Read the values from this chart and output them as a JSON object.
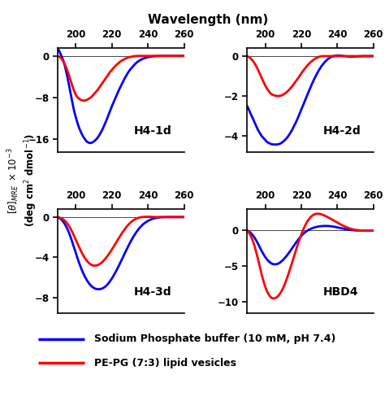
{
  "title": "Wavelength (nm)",
  "xlim": [
    190,
    260
  ],
  "xticks": [
    200,
    220,
    240,
    260
  ],
  "subplots": [
    {
      "label": "H4-1d",
      "ylim": [
        -18.5,
        1.5
      ],
      "yticks": [
        0,
        -8,
        -16
      ],
      "blue_x": [
        190,
        191,
        192,
        193,
        194,
        195,
        196,
        197,
        198,
        199,
        200,
        201,
        202,
        203,
        204,
        205,
        206,
        207,
        208,
        209,
        210,
        211,
        212,
        213,
        214,
        215,
        216,
        217,
        218,
        219,
        220,
        221,
        222,
        223,
        224,
        225,
        226,
        227,
        228,
        229,
        230,
        231,
        232,
        233,
        234,
        235,
        236,
        237,
        238,
        239,
        240,
        241,
        242,
        243,
        244,
        245,
        246,
        247,
        248,
        249,
        250,
        251,
        252,
        253,
        254,
        255,
        256,
        257,
        258,
        259,
        260
      ],
      "blue_y": [
        1.5,
        0.8,
        0.0,
        -0.8,
        -2.0,
        -3.5,
        -5.2,
        -7.0,
        -8.8,
        -10.5,
        -11.8,
        -13.0,
        -14.0,
        -14.8,
        -15.5,
        -16.0,
        -16.5,
        -16.7,
        -16.8,
        -16.7,
        -16.5,
        -16.2,
        -15.8,
        -15.3,
        -14.7,
        -14.0,
        -13.2,
        -12.4,
        -11.5,
        -10.6,
        -9.7,
        -8.9,
        -8.1,
        -7.3,
        -6.5,
        -5.8,
        -5.1,
        -4.4,
        -3.8,
        -3.2,
        -2.7,
        -2.3,
        -1.9,
        -1.5,
        -1.2,
        -0.95,
        -0.75,
        -0.58,
        -0.44,
        -0.33,
        -0.24,
        -0.17,
        -0.12,
        -0.08,
        -0.05,
        -0.03,
        -0.02,
        -0.01,
        0.0,
        0.0,
        0.0,
        0.0,
        0.0,
        0.0,
        0.0,
        0.0,
        0.0,
        0.0,
        0.0,
        0.0,
        0.0
      ],
      "red_x": [
        190,
        191,
        192,
        193,
        194,
        195,
        196,
        197,
        198,
        199,
        200,
        201,
        202,
        203,
        204,
        205,
        206,
        207,
        208,
        209,
        210,
        211,
        212,
        213,
        214,
        215,
        216,
        217,
        218,
        219,
        220,
        221,
        222,
        223,
        224,
        225,
        226,
        227,
        228,
        229,
        230,
        231,
        232,
        233,
        234,
        235,
        236,
        237,
        238,
        239,
        240,
        241,
        242,
        243,
        244,
        245,
        246,
        247,
        248,
        249,
        250,
        251,
        252,
        253,
        254,
        255,
        256,
        257,
        258,
        259,
        260
      ],
      "red_y": [
        0.0,
        -0.2,
        -0.5,
        -1.0,
        -1.7,
        -2.5,
        -3.5,
        -4.6,
        -5.7,
        -6.7,
        -7.5,
        -8.0,
        -8.3,
        -8.5,
        -8.6,
        -8.6,
        -8.5,
        -8.3,
        -8.1,
        -7.8,
        -7.4,
        -7.0,
        -6.6,
        -6.1,
        -5.6,
        -5.1,
        -4.6,
        -4.1,
        -3.6,
        -3.1,
        -2.7,
        -2.3,
        -1.9,
        -1.6,
        -1.3,
        -1.0,
        -0.8,
        -0.6,
        -0.45,
        -0.32,
        -0.22,
        -0.14,
        -0.08,
        -0.04,
        -0.01,
        0.0,
        0.0,
        0.0,
        0.0,
        0.0,
        0.0,
        0.0,
        0.0,
        0.0,
        0.0,
        0.0,
        0.0,
        0.0,
        0.0,
        0.0,
        0.0,
        0.0,
        0.0,
        0.0,
        0.0,
        0.0,
        0.0,
        0.0,
        0.0,
        0.0,
        0.0
      ]
    },
    {
      "label": "H4-2d",
      "ylim": [
        -4.8,
        0.4
      ],
      "yticks": [
        0,
        -2,
        -4
      ],
      "blue_x": [
        190,
        191,
        192,
        193,
        194,
        195,
        196,
        197,
        198,
        199,
        200,
        201,
        202,
        203,
        204,
        205,
        206,
        207,
        208,
        209,
        210,
        211,
        212,
        213,
        214,
        215,
        216,
        217,
        218,
        219,
        220,
        221,
        222,
        223,
        224,
        225,
        226,
        227,
        228,
        229,
        230,
        231,
        232,
        233,
        234,
        235,
        236,
        237,
        238,
        239,
        240,
        241,
        242,
        243,
        244,
        245,
        246,
        247,
        248,
        249,
        250,
        251,
        252,
        253,
        254,
        255,
        256,
        257,
        258,
        259,
        260
      ],
      "blue_y": [
        -2.5,
        -2.7,
        -2.9,
        -3.1,
        -3.3,
        -3.5,
        -3.7,
        -3.85,
        -4.0,
        -4.1,
        -4.2,
        -4.3,
        -4.35,
        -4.4,
        -4.42,
        -4.43,
        -4.43,
        -4.42,
        -4.4,
        -4.35,
        -4.28,
        -4.2,
        -4.1,
        -3.98,
        -3.84,
        -3.68,
        -3.5,
        -3.32,
        -3.12,
        -2.9,
        -2.68,
        -2.46,
        -2.24,
        -2.02,
        -1.8,
        -1.59,
        -1.38,
        -1.18,
        -1.0,
        -0.83,
        -0.67,
        -0.53,
        -0.41,
        -0.3,
        -0.21,
        -0.13,
        -0.07,
        -0.03,
        0.0,
        0.02,
        0.03,
        0.03,
        0.02,
        0.01,
        0.0,
        -0.01,
        -0.02,
        -0.03,
        -0.03,
        -0.03,
        -0.02,
        -0.02,
        -0.01,
        -0.01,
        0.0,
        0.0,
        0.0,
        0.0,
        0.0,
        0.0,
        0.0
      ],
      "red_x": [
        190,
        191,
        192,
        193,
        194,
        195,
        196,
        197,
        198,
        199,
        200,
        201,
        202,
        203,
        204,
        205,
        206,
        207,
        208,
        209,
        210,
        211,
        212,
        213,
        214,
        215,
        216,
        217,
        218,
        219,
        220,
        221,
        222,
        223,
        224,
        225,
        226,
        227,
        228,
        229,
        230,
        231,
        232,
        233,
        234,
        235,
        236,
        237,
        238,
        239,
        240,
        241,
        242,
        243,
        244,
        245,
        246,
        247,
        248,
        249,
        250,
        251,
        252,
        253,
        254,
        255,
        256,
        257,
        258,
        259,
        260
      ],
      "red_y": [
        0.0,
        -0.05,
        -0.12,
        -0.22,
        -0.35,
        -0.5,
        -0.68,
        -0.88,
        -1.08,
        -1.28,
        -1.47,
        -1.63,
        -1.76,
        -1.87,
        -1.93,
        -1.97,
        -1.99,
        -2.0,
        -1.99,
        -1.97,
        -1.93,
        -1.87,
        -1.8,
        -1.71,
        -1.61,
        -1.5,
        -1.38,
        -1.26,
        -1.13,
        -1.0,
        -0.87,
        -0.74,
        -0.62,
        -0.51,
        -0.41,
        -0.32,
        -0.24,
        -0.17,
        -0.11,
        -0.07,
        -0.03,
        -0.01,
        0.0,
        0.0,
        0.0,
        0.0,
        0.0,
        0.0,
        0.0,
        0.0,
        0.0,
        0.0,
        0.0,
        0.0,
        0.0,
        0.0,
        0.0,
        0.0,
        0.0,
        0.0,
        0.0,
        0.0,
        0.0,
        0.0,
        0.0,
        0.0,
        0.0,
        0.0,
        0.0,
        0.0,
        0.0
      ]
    },
    {
      "label": "H4-3d",
      "ylim": [
        -9.5,
        0.8
      ],
      "yticks": [
        0,
        -4,
        -8
      ],
      "blue_x": [
        190,
        191,
        192,
        193,
        194,
        195,
        196,
        197,
        198,
        199,
        200,
        201,
        202,
        203,
        204,
        205,
        206,
        207,
        208,
        209,
        210,
        211,
        212,
        213,
        214,
        215,
        216,
        217,
        218,
        219,
        220,
        221,
        222,
        223,
        224,
        225,
        226,
        227,
        228,
        229,
        230,
        231,
        232,
        233,
        234,
        235,
        236,
        237,
        238,
        239,
        240,
        241,
        242,
        243,
        244,
        245,
        246,
        247,
        248,
        249,
        250,
        251,
        252,
        253,
        254,
        255,
        256,
        257,
        258,
        259,
        260
      ],
      "blue_y": [
        0.0,
        -0.1,
        -0.25,
        -0.45,
        -0.72,
        -1.05,
        -1.45,
        -1.92,
        -2.45,
        -3.0,
        -3.55,
        -4.1,
        -4.62,
        -5.1,
        -5.53,
        -5.9,
        -6.22,
        -6.5,
        -6.73,
        -6.9,
        -7.03,
        -7.12,
        -7.16,
        -7.16,
        -7.13,
        -7.06,
        -6.95,
        -6.8,
        -6.6,
        -6.36,
        -6.1,
        -5.8,
        -5.48,
        -5.14,
        -4.78,
        -4.41,
        -4.04,
        -3.66,
        -3.28,
        -2.92,
        -2.57,
        -2.24,
        -1.93,
        -1.65,
        -1.39,
        -1.15,
        -0.95,
        -0.77,
        -0.62,
        -0.49,
        -0.38,
        -0.29,
        -0.21,
        -0.15,
        -0.1,
        -0.07,
        -0.04,
        -0.02,
        -0.01,
        0.0,
        0.0,
        0.0,
        0.0,
        0.0,
        0.0,
        0.0,
        0.0,
        0.0,
        0.0,
        0.0,
        0.0
      ],
      "red_x": [
        190,
        191,
        192,
        193,
        194,
        195,
        196,
        197,
        198,
        199,
        200,
        201,
        202,
        203,
        204,
        205,
        206,
        207,
        208,
        209,
        210,
        211,
        212,
        213,
        214,
        215,
        216,
        217,
        218,
        219,
        220,
        221,
        222,
        223,
        224,
        225,
        226,
        227,
        228,
        229,
        230,
        231,
        232,
        233,
        234,
        235,
        236,
        237,
        238,
        239,
        240,
        241,
        242,
        243,
        244,
        245,
        246,
        247,
        248,
        249,
        250,
        251,
        252,
        253,
        254,
        255,
        256,
        257,
        258,
        259,
        260
      ],
      "red_y": [
        0.0,
        -0.05,
        -0.12,
        -0.22,
        -0.37,
        -0.57,
        -0.82,
        -1.12,
        -1.47,
        -1.85,
        -2.25,
        -2.65,
        -3.05,
        -3.42,
        -3.76,
        -4.06,
        -4.31,
        -4.52,
        -4.67,
        -4.77,
        -4.82,
        -4.82,
        -4.78,
        -4.69,
        -4.57,
        -4.41,
        -4.21,
        -4.0,
        -3.75,
        -3.5,
        -3.22,
        -2.93,
        -2.64,
        -2.34,
        -2.05,
        -1.76,
        -1.49,
        -1.24,
        -1.0,
        -0.79,
        -0.6,
        -0.44,
        -0.31,
        -0.2,
        -0.12,
        -0.06,
        -0.02,
        0.0,
        0.02,
        0.03,
        0.03,
        0.03,
        0.02,
        0.01,
        0.0,
        0.0,
        0.0,
        0.0,
        0.0,
        0.0,
        0.0,
        0.0,
        0.0,
        0.0,
        0.0,
        0.0,
        0.0,
        0.0,
        0.0,
        0.0,
        0.0
      ]
    },
    {
      "label": "HBD4",
      "ylim": [
        -11.5,
        3.0
      ],
      "yticks": [
        0,
        -5,
        -10
      ],
      "blue_x": [
        190,
        191,
        192,
        193,
        194,
        195,
        196,
        197,
        198,
        199,
        200,
        201,
        202,
        203,
        204,
        205,
        206,
        207,
        208,
        209,
        210,
        211,
        212,
        213,
        214,
        215,
        216,
        217,
        218,
        219,
        220,
        221,
        222,
        223,
        224,
        225,
        226,
        227,
        228,
        229,
        230,
        231,
        232,
        233,
        234,
        235,
        236,
        237,
        238,
        239,
        240,
        241,
        242,
        243,
        244,
        245,
        246,
        247,
        248,
        249,
        250,
        251,
        252,
        253,
        254,
        255,
        256,
        257,
        258,
        259,
        260
      ],
      "blue_y": [
        0.0,
        -0.15,
        -0.35,
        -0.62,
        -0.97,
        -1.38,
        -1.85,
        -2.35,
        -2.85,
        -3.3,
        -3.7,
        -4.05,
        -4.32,
        -4.53,
        -4.67,
        -4.73,
        -4.72,
        -4.65,
        -4.52,
        -4.33,
        -4.09,
        -3.81,
        -3.5,
        -3.17,
        -2.82,
        -2.45,
        -2.08,
        -1.72,
        -1.37,
        -1.05,
        -0.75,
        -0.49,
        -0.27,
        -0.08,
        0.07,
        0.2,
        0.31,
        0.4,
        0.47,
        0.53,
        0.57,
        0.6,
        0.62,
        0.63,
        0.63,
        0.62,
        0.6,
        0.57,
        0.53,
        0.48,
        0.43,
        0.38,
        0.32,
        0.27,
        0.21,
        0.16,
        0.12,
        0.08,
        0.05,
        0.03,
        0.01,
        0.0,
        0.0,
        0.0,
        0.0,
        0.0,
        0.0,
        0.0,
        0.0,
        0.0,
        0.0
      ],
      "red_x": [
        190,
        191,
        192,
        193,
        194,
        195,
        196,
        197,
        198,
        199,
        200,
        201,
        202,
        203,
        204,
        205,
        206,
        207,
        208,
        209,
        210,
        211,
        212,
        213,
        214,
        215,
        216,
        217,
        218,
        219,
        220,
        221,
        222,
        223,
        224,
        225,
        226,
        227,
        228,
        229,
        230,
        231,
        232,
        233,
        234,
        235,
        236,
        237,
        238,
        239,
        240,
        241,
        242,
        243,
        244,
        245,
        246,
        247,
        248,
        249,
        250,
        251,
        252,
        253,
        254,
        255,
        256,
        257,
        258,
        259,
        260
      ],
      "red_y": [
        0.0,
        -0.3,
        -0.75,
        -1.35,
        -2.1,
        -3.0,
        -4.0,
        -5.05,
        -6.1,
        -7.05,
        -7.85,
        -8.5,
        -8.98,
        -9.3,
        -9.47,
        -9.5,
        -9.4,
        -9.2,
        -8.9,
        -8.5,
        -8.0,
        -7.4,
        -6.72,
        -6.0,
        -5.22,
        -4.42,
        -3.6,
        -2.8,
        -2.0,
        -1.25,
        -0.56,
        0.07,
        0.62,
        1.1,
        1.5,
        1.82,
        2.06,
        2.22,
        2.32,
        2.35,
        2.33,
        2.27,
        2.18,
        2.07,
        1.95,
        1.82,
        1.68,
        1.54,
        1.39,
        1.24,
        1.1,
        0.96,
        0.82,
        0.69,
        0.57,
        0.46,
        0.36,
        0.27,
        0.2,
        0.13,
        0.08,
        0.04,
        0.01,
        -0.01,
        -0.02,
        -0.02,
        -0.02,
        -0.01,
        -0.01,
        0.0,
        0.0
      ]
    }
  ],
  "legend": [
    {
      "label": "Sodium Phosphate buffer (10 mM, pH 7.4)",
      "color": "#0000ff"
    },
    {
      "label": "PE-PG (7:3) lipid vesicles",
      "color": "#ff0000"
    }
  ],
  "blue_color": "#0000ff",
  "red_color": "#ff0000",
  "line_width": 2.0
}
